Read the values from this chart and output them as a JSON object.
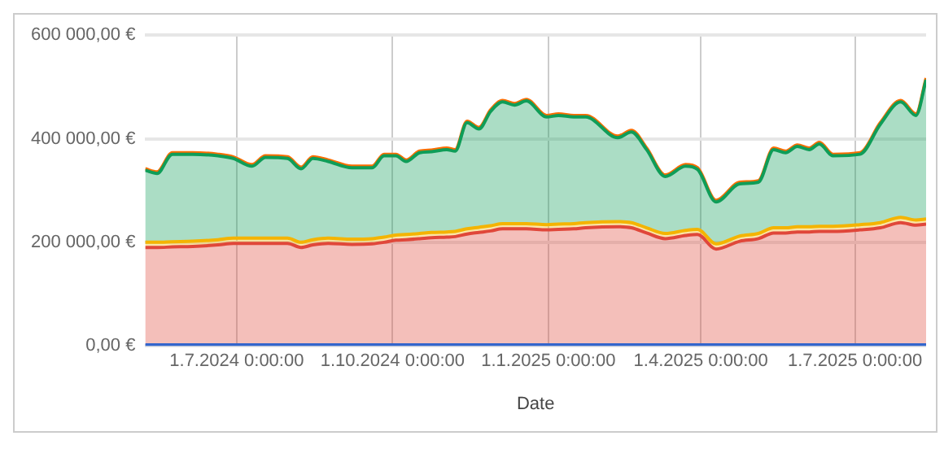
{
  "chart_data": {
    "type": "area",
    "stacked": true,
    "xlabel": "Date",
    "grid": true,
    "legend": false,
    "marker": "none",
    "x": [
      "2024-05-08",
      "2024-05-15",
      "2024-05-24",
      "2024-06-05",
      "2024-06-20",
      "2024-06-29",
      "2024-07-10",
      "2024-07-18",
      "2024-07-31",
      "2024-08-08",
      "2024-08-15",
      "2024-08-24",
      "2024-09-07",
      "2024-09-19",
      "2024-09-26",
      "2024-10-03",
      "2024-10-09",
      "2024-10-17",
      "2024-10-24",
      "2024-11-02",
      "2024-11-07",
      "2024-11-14",
      "2024-11-21",
      "2024-11-28",
      "2024-12-05",
      "2024-12-12",
      "2024-12-19",
      "2024-12-31",
      "2025-01-07",
      "2025-01-16",
      "2025-01-23",
      "2025-02-11",
      "2025-02-19",
      "2025-02-28",
      "2025-03-11",
      "2025-03-23",
      "2025-03-30",
      "2025-04-10",
      "2025-04-24",
      "2025-05-05",
      "2025-05-14",
      "2025-05-21",
      "2025-05-28",
      "2025-06-04",
      "2025-06-10",
      "2025-06-18",
      "2025-07-04",
      "2025-07-16",
      "2025-07-28",
      "2025-08-06",
      "2025-08-12"
    ],
    "series": [
      {
        "color": "#3366cc",
        "values": [
          2000,
          2000,
          2000,
          2000,
          2000,
          2000,
          2000,
          2000,
          2000,
          2000,
          2000,
          2000,
          2000,
          2000,
          2000,
          2000,
          2000,
          2000,
          2000,
          2000,
          2000,
          2000,
          2000,
          2000,
          2000,
          2000,
          2000,
          2000,
          2000,
          2000,
          2000,
          2000,
          2000,
          2000,
          2000,
          2000,
          2000,
          2000,
          2000,
          2000,
          2000,
          2000,
          2000,
          2000,
          2000,
          2000,
          2000,
          2000,
          2000,
          2000,
          2000
        ]
      },
      {
        "color": "#e0473a",
        "values": [
          188000,
          188000,
          189000,
          190000,
          193000,
          196000,
          196000,
          196000,
          196000,
          188000,
          193000,
          196000,
          194000,
          195000,
          198000,
          202000,
          203000,
          205000,
          207000,
          208000,
          209000,
          214000,
          217000,
          220000,
          224000,
          224000,
          224000,
          222000,
          223000,
          224000,
          226000,
          228000,
          226000,
          216000,
          205000,
          211000,
          213000,
          185000,
          200000,
          205000,
          216000,
          216000,
          218000,
          218000,
          219000,
          219000,
          222000,
          226000,
          236000,
          231000,
          233000
        ]
      },
      {
        "color": "#f4b400",
        "values": [
          10000,
          10000,
          10000,
          10000,
          10000,
          10000,
          10000,
          10000,
          10000,
          10000,
          10000,
          10000,
          10000,
          10000,
          10000,
          10000,
          10000,
          10000,
          10000,
          10000,
          10000,
          10000,
          10000,
          10000,
          10000,
          10000,
          10000,
          10000,
          10000,
          10000,
          10000,
          10000,
          10000,
          10000,
          10000,
          10000,
          10000,
          10000,
          10000,
          10000,
          10000,
          10000,
          10000,
          10000,
          10000,
          10000,
          10000,
          10000,
          10000,
          10000,
          10000
        ]
      },
      {
        "color": "#0f9d58",
        "values": [
          139000,
          133000,
          169000,
          168000,
          162000,
          154000,
          139000,
          156000,
          154000,
          142000,
          157000,
          148000,
          138000,
          137000,
          157000,
          153000,
          141000,
          156000,
          156000,
          159000,
          155000,
          205000,
          190000,
          221000,
          235000,
          229000,
          237000,
          208000,
          210000,
          206000,
          204000,
          162000,
          175000,
          151000,
          110000,
          124000,
          116000,
          81000,
          101000,
          99000,
          151000,
          145000,
          155000,
          149000,
          159000,
          136000,
          136000,
          190000,
          223000,
          202000,
          269000
        ]
      },
      {
        "color": "#ff6d01",
        "values": [
          3000,
          3000,
          3000,
          3000,
          3000,
          3000,
          3000,
          3000,
          3000,
          3000,
          3000,
          3000,
          3000,
          3000,
          3000,
          3000,
          3000,
          3000,
          3000,
          3000,
          3000,
          3000,
          3000,
          3000,
          3000,
          3000,
          3000,
          3000,
          3000,
          3000,
          3000,
          3000,
          3000,
          3000,
          3000,
          3000,
          3000,
          3000,
          3000,
          3000,
          3000,
          3000,
          3000,
          3000,
          3000,
          3000,
          3000,
          3000,
          3000,
          3000,
          3000
        ]
      }
    ],
    "xlim": [
      "2024-05-08",
      "2025-08-12"
    ],
    "xticks": [
      {
        "value": "2024-07-01",
        "label": "1.7.2024 0:00:00"
      },
      {
        "value": "2024-10-01",
        "label": "1.10.2024 0:00:00"
      },
      {
        "value": "2025-01-01",
        "label": "1.1.2025 0:00:00"
      },
      {
        "value": "2025-04-01",
        "label": "1.4.2025 0:00:00"
      },
      {
        "value": "2025-07-01",
        "label": "1.7.2025 0:00:00"
      }
    ],
    "ylim": [
      0,
      600000
    ],
    "yticks": [
      {
        "value": 0,
        "label": "0,00 €"
      },
      {
        "value": 200000,
        "label": "200 000,00 €"
      },
      {
        "value": 400000,
        "label": "400 000,00 €"
      },
      {
        "value": 600000,
        "label": "600 000,00 €"
      }
    ]
  }
}
